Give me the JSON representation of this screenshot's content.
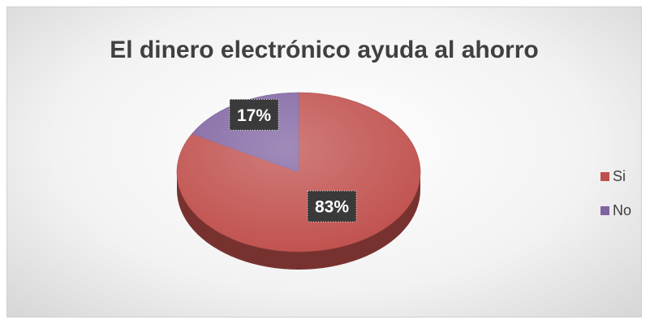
{
  "chart_data": {
    "type": "pie",
    "title": "El dinero electrónico ayuda al ahorro",
    "categories": [
      "Si",
      "No"
    ],
    "values": [
      83,
      17
    ],
    "labels": [
      "83%",
      "17%"
    ],
    "colors": [
      "#C0504D",
      "#8064A2"
    ],
    "legend_position": "right"
  }
}
